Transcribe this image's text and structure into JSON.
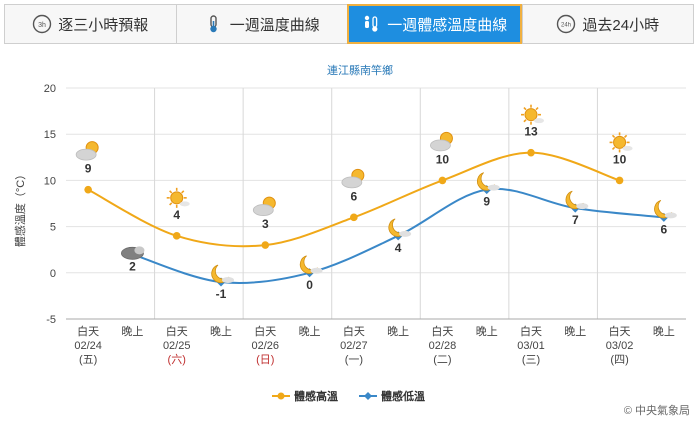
{
  "tabs": [
    {
      "label": "逐三小時預報",
      "icon": "3h-clock-icon",
      "icon_text": "3h",
      "active": false
    },
    {
      "label": "一週溫度曲線",
      "icon": "thermometer-icon",
      "active": false
    },
    {
      "label": "一週體感溫度曲線",
      "icon": "thermometer-person-icon",
      "active": true
    },
    {
      "label": "過去24小時",
      "icon": "24h-clock-icon",
      "icon_text": "24h",
      "active": false
    }
  ],
  "footer": {
    "copyright": "© 中央氣象局"
  },
  "colors": {
    "high": "#f0a818",
    "low": "#3a88c8",
    "tab_active": "#1e8ee0",
    "title": "#2a7ab8"
  },
  "chart_data": {
    "type": "line",
    "title": "連江縣南竿鄉",
    "ylabel": "體感溫度（°C）",
    "ylim": [
      -5,
      20
    ],
    "yticks": [
      -5,
      0,
      5,
      10,
      15,
      20
    ],
    "grid": true,
    "legend_position": "bottom",
    "categories": [
      {
        "period": "白天",
        "date": "02/24",
        "weekday": "(五)",
        "holiday": false
      },
      {
        "period": "晚上"
      },
      {
        "period": "白天",
        "date": "02/25",
        "weekday": "(六)",
        "holiday": true
      },
      {
        "period": "晚上"
      },
      {
        "period": "白天",
        "date": "02/26",
        "weekday": "(日)",
        "holiday": true
      },
      {
        "period": "晚上"
      },
      {
        "period": "白天",
        "date": "02/27",
        "weekday": "(一)",
        "holiday": false
      },
      {
        "period": "晚上"
      },
      {
        "period": "白天",
        "date": "02/28",
        "weekday": "(二)",
        "holiday": false
      },
      {
        "period": "晚上"
      },
      {
        "period": "白天",
        "date": "03/01",
        "weekday": "(三)",
        "holiday": false
      },
      {
        "period": "晚上"
      },
      {
        "period": "白天",
        "date": "03/02",
        "weekday": "(四)",
        "holiday": false
      },
      {
        "period": "晚上"
      }
    ],
    "series": [
      {
        "name": "體感高溫",
        "points": [
          [
            0,
            9
          ],
          [
            2,
            4
          ],
          [
            4,
            3
          ],
          [
            6,
            6
          ],
          [
            8,
            10
          ],
          [
            10,
            13
          ],
          [
            12,
            10
          ]
        ],
        "color": "#f0a818"
      },
      {
        "name": "體感低溫",
        "points": [
          [
            1,
            2
          ],
          [
            3,
            -1
          ],
          [
            5,
            0
          ],
          [
            7,
            4
          ],
          [
            9,
            9
          ],
          [
            11,
            7
          ],
          [
            13,
            6
          ]
        ],
        "color": "#3a88c8"
      }
    ],
    "labels": [
      {
        "i": 0,
        "value": "9",
        "icon": "sun-behind-cloud-icon"
      },
      {
        "i": 1,
        "value": "2",
        "icon": "dark-cloud-icon"
      },
      {
        "i": 2,
        "value": "4",
        "icon": "sun-icon"
      },
      {
        "i": 3,
        "value": "-1",
        "icon": "moon-cloud-icon"
      },
      {
        "i": 4,
        "value": "3",
        "icon": "sun-behind-cloud-icon"
      },
      {
        "i": 5,
        "value": "0",
        "icon": "moon-cloud-icon"
      },
      {
        "i": 6,
        "value": "6",
        "icon": "sun-behind-cloud-icon"
      },
      {
        "i": 7,
        "value": "4",
        "icon": "moon-cloud-icon"
      },
      {
        "i": 8,
        "value": "10",
        "icon": "sun-behind-cloud-icon"
      },
      {
        "i": 9,
        "value": "9",
        "icon": "moon-cloud-icon"
      },
      {
        "i": 10,
        "value": "13",
        "icon": "sun-icon"
      },
      {
        "i": 11,
        "value": "7",
        "icon": "moon-cloud-icon"
      },
      {
        "i": 12,
        "value": "10",
        "icon": "sun-icon"
      },
      {
        "i": 13,
        "value": "6",
        "icon": "moon-cloud-icon"
      }
    ]
  }
}
